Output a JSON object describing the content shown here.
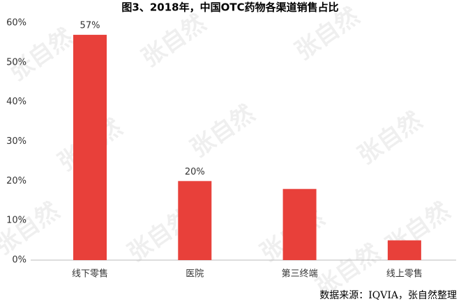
{
  "chart_data": {
    "type": "bar",
    "title": "图3、2018年，中国OTC药物各渠道销售占比",
    "categories": [
      "线下零售",
      "医院",
      "第三终端",
      "线上零售"
    ],
    "values": [
      57,
      20,
      18,
      5
    ],
    "value_labels": [
      "57%",
      "20%",
      null,
      null
    ],
    "color": "#e8403a",
    "ylim": [
      0,
      60
    ],
    "yticks": [
      {
        "value": 0,
        "label": "0%"
      },
      {
        "value": 10,
        "label": "10%"
      },
      {
        "value": 20,
        "label": "20%"
      },
      {
        "value": 30,
        "label": "30%"
      },
      {
        "value": 40,
        "label": "40%"
      },
      {
        "value": 50,
        "label": "50%"
      },
      {
        "value": 60,
        "label": "60%"
      }
    ],
    "source": "数据来源：IQVIA，张自然整理",
    "watermark": "张自然"
  }
}
